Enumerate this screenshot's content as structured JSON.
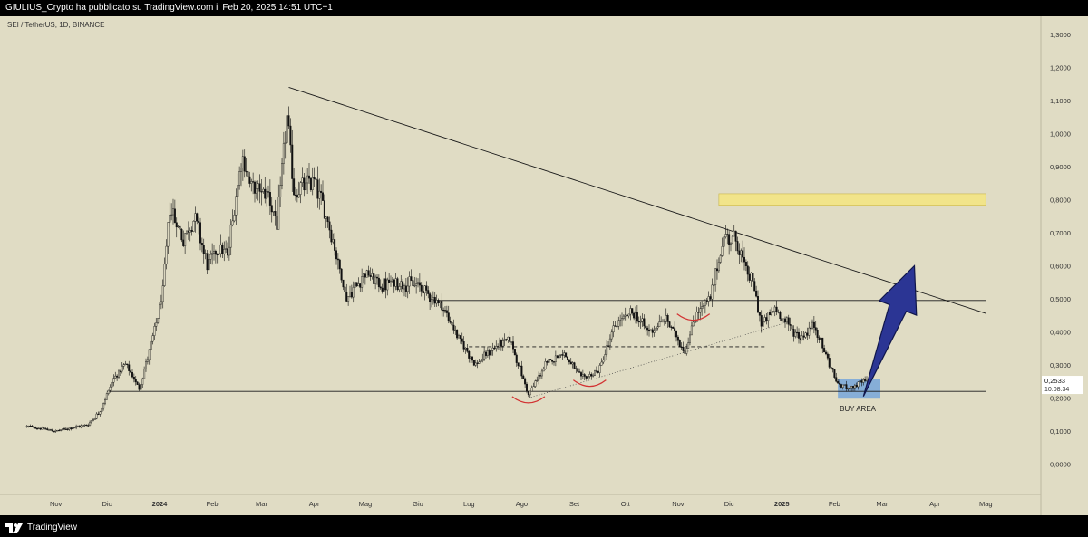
{
  "header": {
    "publisher": "GIULIUS_Crypto ha pubblicato su TradingView.com il Feb 20, 2025 14:51 UTC+1"
  },
  "footer": {
    "brand": "TradingView"
  },
  "colors": {
    "background": "#e0dcc4",
    "candle": "#111111",
    "resistance_zone": "#f1e48a",
    "buy_area": "#6fa3dc",
    "arrow": "#2b3594",
    "curve_marks": "#d23232",
    "price_badge": "#ffffff"
  },
  "icons": [
    "tradingview-logo-icon",
    "up-arrow-icon"
  ],
  "chart_data": {
    "type": "candlestick",
    "symbol_label": "SEI / TetherUS, 1D, BINANCE",
    "y_ticks": [
      "1,3000",
      "1,2000",
      "1,1000",
      "1,0000",
      "0,9000",
      "0,8000",
      "0,7000",
      "0,6000",
      "0,5000",
      "0,4000",
      "0,3000",
      "0,2000",
      "0,1000",
      "0,0000"
    ],
    "y_values": [
      1.3,
      1.2,
      1.1,
      1.0,
      0.9,
      0.8,
      0.7,
      0.6,
      0.5,
      0.4,
      0.3,
      0.2,
      0.1,
      0.0
    ],
    "x_ticks": [
      "Nov",
      "Dic",
      "2024",
      "Feb",
      "Mar",
      "Apr",
      "Mag",
      "Giu",
      "Lug",
      "Ago",
      "Set",
      "Ott",
      "Nov",
      "Dic",
      "2025",
      "Feb",
      "Mar",
      "Apr",
      "Mag"
    ],
    "x_tick_dates": [
      "2023-11-01",
      "2023-12-01",
      "2024-01-01",
      "2024-02-01",
      "2024-03-01",
      "2024-04-01",
      "2024-05-01",
      "2024-06-01",
      "2024-07-01",
      "2024-08-01",
      "2024-09-01",
      "2024-10-01",
      "2024-11-01",
      "2024-12-01",
      "2025-01-01",
      "2025-02-01",
      "2025-03-01",
      "2025-04-01",
      "2025-05-01"
    ],
    "current_price": "0,2533",
    "countdown": "10:08:34",
    "annotations": {
      "buy_area_label": "BUY AREA"
    },
    "price_path": [
      [
        "2023-10-15",
        0.115
      ],
      [
        "2023-11-01",
        0.1
      ],
      [
        "2023-11-20",
        0.12
      ],
      [
        "2023-11-27",
        0.16
      ],
      [
        "2023-12-05",
        0.26
      ],
      [
        "2023-12-12",
        0.3
      ],
      [
        "2023-12-20",
        0.23
      ],
      [
        "2023-12-28",
        0.38
      ],
      [
        "2024-01-03",
        0.52
      ],
      [
        "2024-01-07",
        0.78
      ],
      [
        "2024-01-15",
        0.68
      ],
      [
        "2024-01-22",
        0.75
      ],
      [
        "2024-01-29",
        0.6
      ],
      [
        "2024-02-05",
        0.66
      ],
      [
        "2024-02-10",
        0.63
      ],
      [
        "2024-02-18",
        0.93
      ],
      [
        "2024-02-25",
        0.83
      ],
      [
        "2024-03-05",
        0.82
      ],
      [
        "2024-03-10",
        0.72
      ],
      [
        "2024-03-16",
        1.05
      ],
      [
        "2024-03-20",
        0.82
      ],
      [
        "2024-04-01",
        0.86
      ],
      [
        "2024-04-10",
        0.72
      ],
      [
        "2024-04-20",
        0.5
      ],
      [
        "2024-05-01",
        0.58
      ],
      [
        "2024-05-10",
        0.54
      ],
      [
        "2024-05-20",
        0.55
      ],
      [
        "2024-06-01",
        0.54
      ],
      [
        "2024-06-15",
        0.48
      ],
      [
        "2024-06-25",
        0.38
      ],
      [
        "2024-07-05",
        0.3
      ],
      [
        "2024-07-15",
        0.35
      ],
      [
        "2024-07-25",
        0.38
      ],
      [
        "2024-08-05",
        0.21
      ],
      [
        "2024-08-15",
        0.3
      ],
      [
        "2024-08-25",
        0.34
      ],
      [
        "2024-09-05",
        0.26
      ],
      [
        "2024-09-15",
        0.28
      ],
      [
        "2024-09-25",
        0.42
      ],
      [
        "2024-10-05",
        0.46
      ],
      [
        "2024-10-15",
        0.4
      ],
      [
        "2024-10-25",
        0.44
      ],
      [
        "2024-11-05",
        0.34
      ],
      [
        "2024-11-12",
        0.46
      ],
      [
        "2024-11-20",
        0.5
      ],
      [
        "2024-11-28",
        0.69
      ],
      [
        "2024-12-05",
        0.68
      ],
      [
        "2024-12-10",
        0.6
      ],
      [
        "2024-12-15",
        0.55
      ],
      [
        "2024-12-20",
        0.42
      ],
      [
        "2024-12-28",
        0.47
      ],
      [
        "2025-01-05",
        0.42
      ],
      [
        "2025-01-12",
        0.38
      ],
      [
        "2025-01-20",
        0.42
      ],
      [
        "2025-01-27",
        0.33
      ],
      [
        "2025-02-03",
        0.24
      ],
      [
        "2025-02-10",
        0.23
      ],
      [
        "2025-02-20",
        0.2533
      ]
    ],
    "trendline": [
      [
        "2024-03-17",
        1.14
      ],
      [
        "2025-05-01",
        0.456
      ]
    ],
    "support_line": [
      [
        "2023-12-01",
        0.22
      ],
      [
        "2025-05-01",
        0.22
      ]
    ],
    "resistance_line": [
      [
        "2024-06-10",
        0.495
      ],
      [
        "2025-05-01",
        0.495
      ]
    ],
    "lower_dotted_line": [
      [
        "2023-12-01",
        0.2
      ],
      [
        "2025-02-20",
        0.2
      ]
    ],
    "upper_dotted_line": [
      [
        "2024-09-28",
        0.52
      ],
      [
        "2025-05-01",
        0.52
      ]
    ],
    "mid_dashed_line": [
      [
        "2024-07-01",
        0.355
      ],
      [
        "2024-12-22",
        0.355
      ]
    ],
    "rising_trendline": [
      [
        "2024-08-05",
        0.2
      ],
      [
        "2025-01-05",
        0.43
      ]
    ],
    "resistance_zone": {
      "x": [
        "2024-11-25",
        "2025-05-01"
      ],
      "y": [
        0.783,
        0.818
      ]
    },
    "buy_area": {
      "x": [
        "2025-02-03",
        "2025-02-28"
      ],
      "y": [
        0.198,
        0.258
      ]
    },
    "arrow": {
      "from": [
        "2025-02-18",
        0.205
      ],
      "to": [
        "2025-03-20",
        0.6
      ]
    },
    "curve_marks": [
      "2024-08-05",
      "2024-09-10",
      "2024-11-10"
    ]
  }
}
